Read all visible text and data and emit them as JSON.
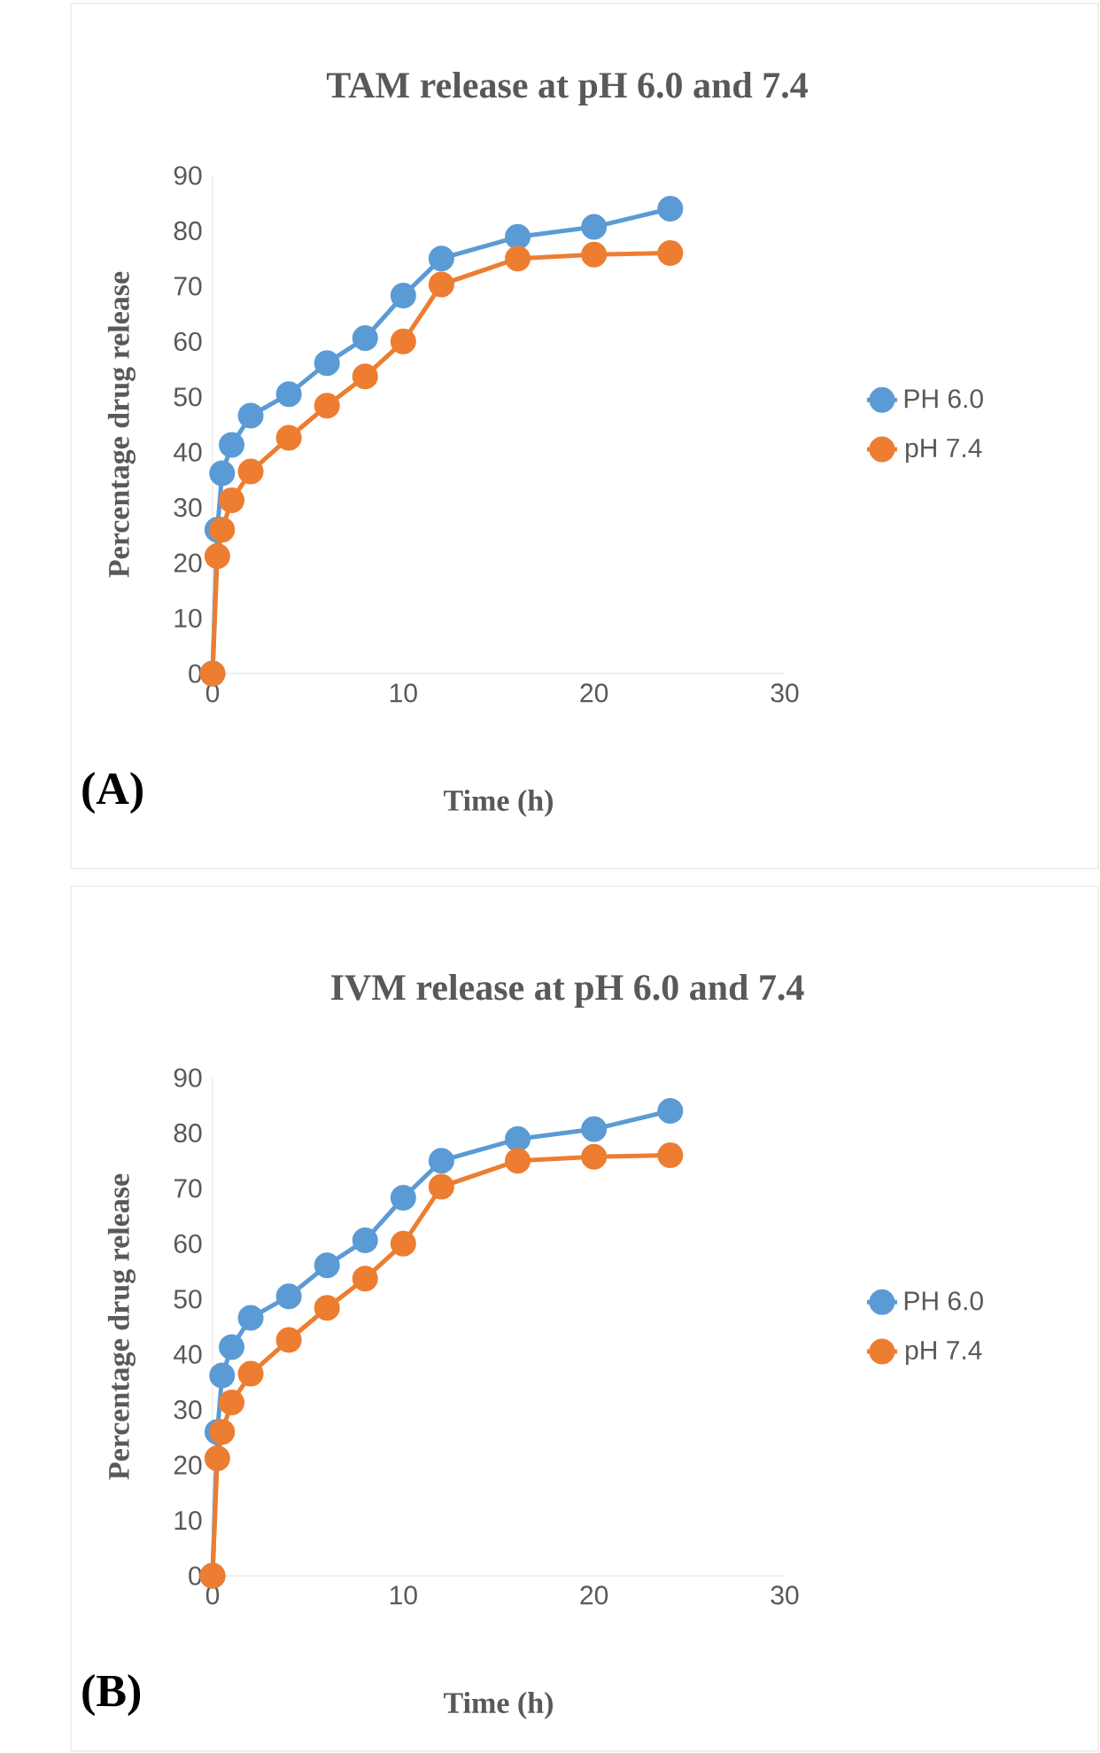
{
  "chart_data": [
    {
      "type": "line",
      "title": "TAM  release at pH 6.0 and 7.4",
      "xlabel": "Time (h)",
      "ylabel": "Percentage drug release",
      "x": [
        0,
        0.25,
        0.5,
        1,
        2,
        4,
        6,
        8,
        10,
        12,
        16,
        20,
        24
      ],
      "series": [
        {
          "name": "PH 6.0",
          "color": "#5b9bd5",
          "values": [
            0,
            26,
            36.2,
            41.3,
            46.6,
            50.5,
            56.1,
            60.6,
            68.3,
            75,
            78.9,
            80.7,
            84
          ]
        },
        {
          "name": "pH 7.4",
          "color": "#ed7d31",
          "values": [
            0,
            21.2,
            26,
            31.3,
            36.5,
            42.6,
            48.4,
            53.7,
            60,
            70.3,
            75,
            75.7,
            76
          ]
        }
      ],
      "xlim": [
        0,
        30
      ],
      "xticks": [
        0,
        10,
        20,
        30
      ],
      "ylim": [
        0,
        90
      ],
      "yticks": [
        0,
        10,
        20,
        30,
        40,
        50,
        60,
        70,
        80,
        90
      ],
      "marker": "circle",
      "legend": "right",
      "annotations": [
        "(A)"
      ]
    },
    {
      "type": "line",
      "title": "IVM  release at pH 6.0 and 7.4",
      "xlabel": "Time (h)",
      "ylabel": "Percentage drug release",
      "x": [
        0,
        0.25,
        0.5,
        1,
        2,
        4,
        6,
        8,
        10,
        12,
        16,
        20,
        24
      ],
      "series": [
        {
          "name": "PH 6.0",
          "color": "#5b9bd5",
          "values": [
            0,
            26,
            36.2,
            41.3,
            46.6,
            50.5,
            56.1,
            60.6,
            68.3,
            75,
            78.9,
            80.7,
            84
          ]
        },
        {
          "name": "pH 7.4",
          "color": "#ed7d31",
          "values": [
            0,
            21.2,
            26,
            31.3,
            36.5,
            42.6,
            48.4,
            53.7,
            60,
            70.3,
            75,
            75.7,
            76
          ]
        }
      ],
      "xlim": [
        0,
        30
      ],
      "xticks": [
        0,
        10,
        20,
        30
      ],
      "ylim": [
        0,
        90
      ],
      "yticks": [
        0,
        10,
        20,
        30,
        40,
        50,
        60,
        70,
        80,
        90
      ],
      "marker": "circle",
      "legend": "right",
      "annotations": [
        "(B)"
      ]
    }
  ]
}
